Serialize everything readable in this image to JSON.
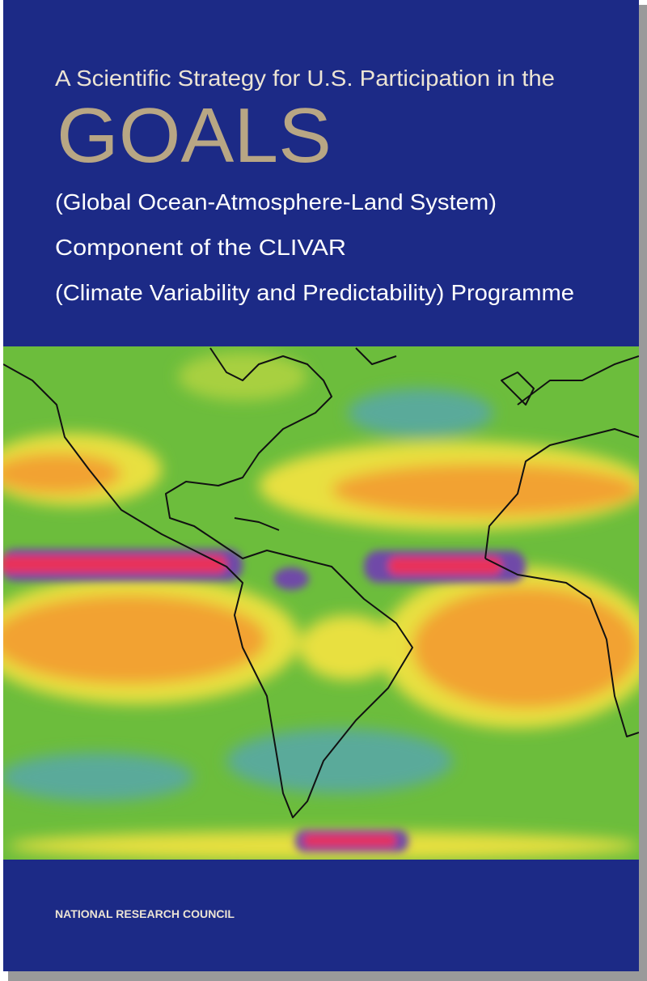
{
  "cover": {
    "title_line": "A Scientific Strategy for U.S. Participation in the",
    "acronym": "GOALS",
    "subtitle_lines": [
      "(Global Ocean-Atmosphere-Land System)",
      "Component of the CLIVAR",
      "(Climate Variability and Predictability) Programme"
    ],
    "publisher": "NATIONAL RESEARCH COUNCIL"
  }
}
